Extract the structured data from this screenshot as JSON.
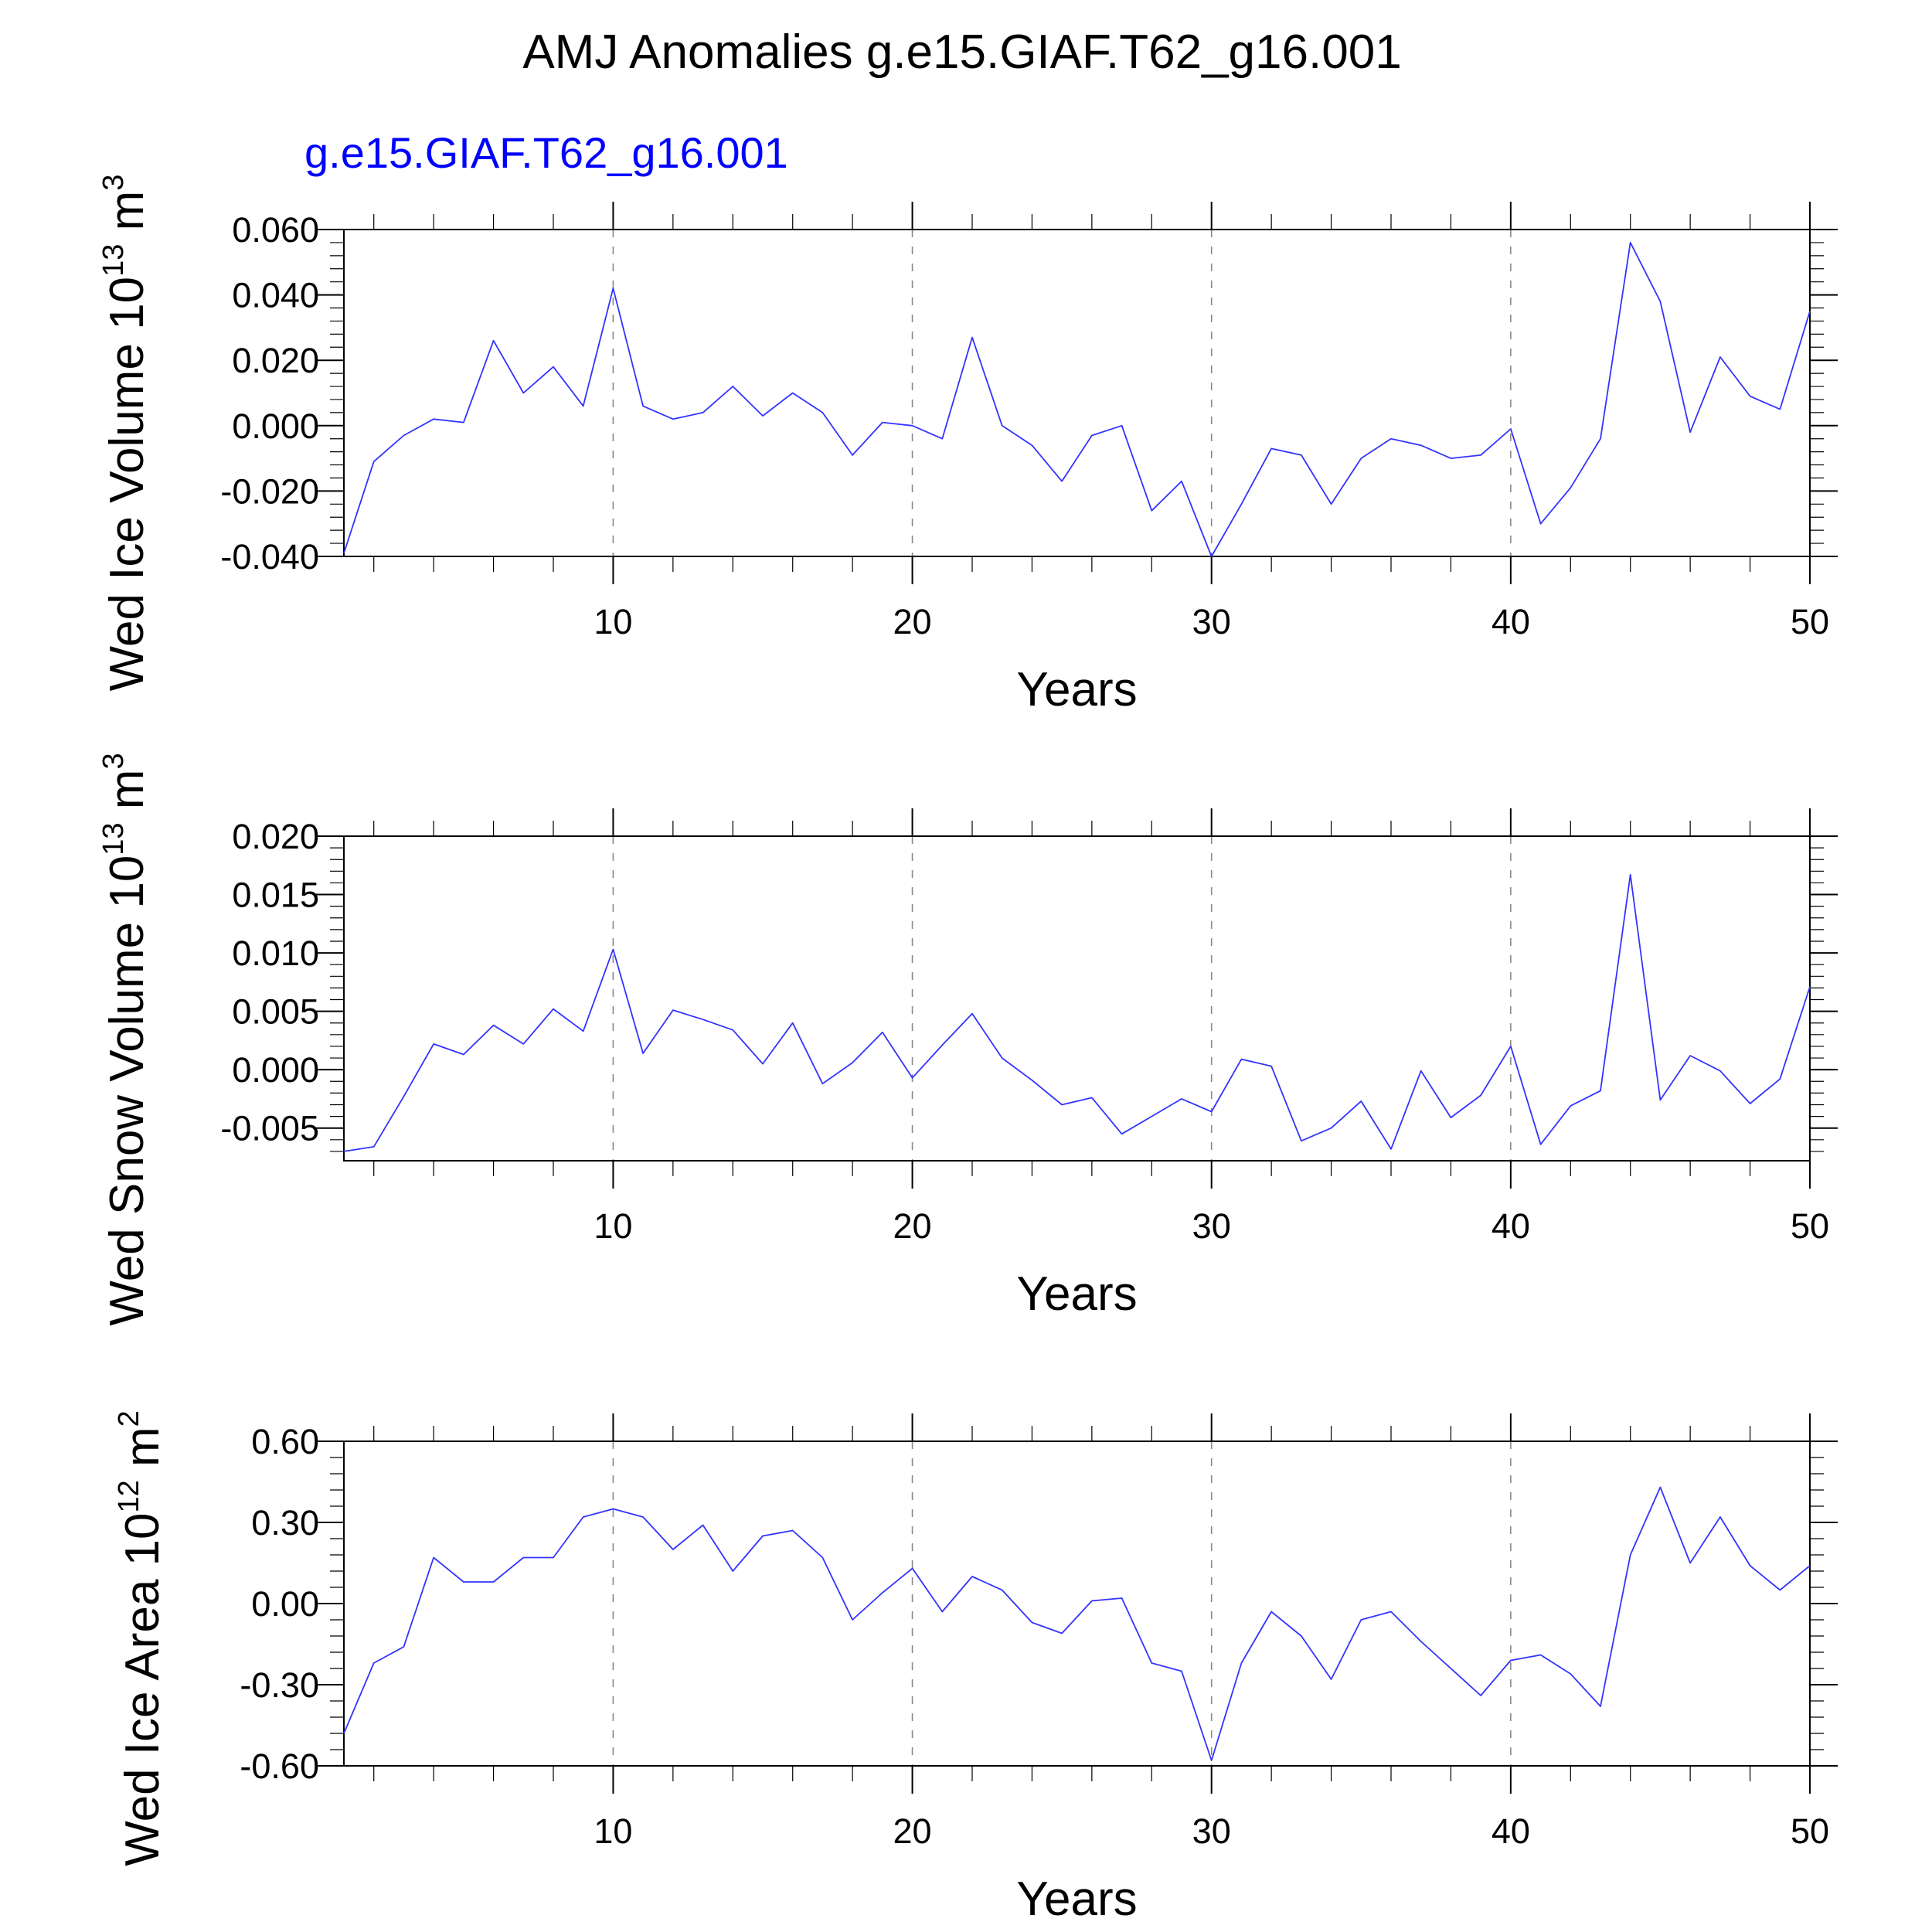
{
  "title": "AMJ Anomalies g.e15.GIAF.T62_g16.001",
  "subtitle": "g.e15.GIAF.T62_g16.001",
  "colors": {
    "series": "#3333ff",
    "subtitle": "#0000ff",
    "frame": "#000000",
    "grid": "#888888"
  },
  "chart_data": [
    {
      "type": "line",
      "ylabel": {
        "text": "Wed Ice Volume 10",
        "sup1": "13",
        "mid": " m",
        "sup2": "3"
      },
      "xlabel": "Years",
      "xlim": [
        1,
        50
      ],
      "ylim": [
        -0.04,
        0.06
      ],
      "x_ticks": [
        "10",
        "20",
        "30",
        "40",
        "50"
      ],
      "y_ticks": [
        "-0.040",
        "-0.020",
        "0.000",
        "0.020",
        "0.040",
        "0.060"
      ],
      "grid": "vertical dashed at major x ticks",
      "series": [
        {
          "x": [
            1,
            2,
            3,
            4,
            5,
            6,
            7,
            8,
            9,
            10,
            11,
            12,
            13,
            14,
            15,
            16,
            17,
            18,
            19,
            20,
            21,
            22,
            23,
            24,
            25,
            26,
            27,
            28,
            29,
            30,
            31,
            32,
            33,
            34,
            35,
            36,
            37,
            38,
            39,
            40,
            41,
            42,
            43,
            44,
            45,
            46,
            47,
            48,
            49,
            50
          ],
          "values": [
            -0.039,
            -0.011,
            -0.003,
            0.002,
            0.001,
            0.026,
            0.01,
            0.018,
            0.006,
            0.042,
            0.006,
            0.002,
            0.004,
            0.012,
            0.003,
            0.01,
            0.004,
            -0.009,
            0.001,
            0.0,
            -0.004,
            0.027,
            0.0,
            -0.006,
            -0.017,
            -0.003,
            0.0,
            -0.026,
            -0.017,
            -0.04,
            -0.024,
            -0.007,
            -0.009,
            -0.024,
            -0.01,
            -0.004,
            -0.006,
            -0.01,
            -0.009,
            -0.001,
            -0.03,
            -0.019,
            -0.004,
            0.056,
            0.038,
            -0.002,
            0.021,
            0.009,
            0.005,
            0.035
          ]
        }
      ]
    },
    {
      "type": "line",
      "ylabel": {
        "text": "Wed Snow Volume 10",
        "sup1": "13",
        "mid": " m",
        "sup2": "3"
      },
      "xlabel": "Years",
      "xlim": [
        1,
        50
      ],
      "ylim": [
        -0.0078,
        0.02
      ],
      "x_ticks": [
        "10",
        "20",
        "30",
        "40",
        "50"
      ],
      "y_ticks": [
        "-0.005",
        "0.000",
        "0.005",
        "0.010",
        "0.015",
        "0.020"
      ],
      "grid": "vertical dashed at major x ticks",
      "series": [
        {
          "x": [
            1,
            2,
            3,
            4,
            5,
            6,
            7,
            8,
            9,
            10,
            11,
            12,
            13,
            14,
            15,
            16,
            17,
            18,
            19,
            20,
            21,
            22,
            23,
            24,
            25,
            26,
            27,
            28,
            29,
            30,
            31,
            32,
            33,
            34,
            35,
            36,
            37,
            38,
            39,
            40,
            41,
            42,
            43,
            44,
            45,
            46,
            47,
            48,
            49,
            50
          ],
          "values": [
            -0.007,
            -0.0066,
            -0.0023,
            0.0022,
            0.0013,
            0.0038,
            0.0022,
            0.0052,
            0.0033,
            0.0103,
            0.0014,
            0.0051,
            0.0043,
            0.0034,
            0.0005,
            0.004,
            -0.0012,
            0.0006,
            0.0032,
            -0.0007,
            0.0021,
            0.0048,
            0.001,
            -0.0009,
            -0.003,
            -0.0024,
            -0.0055,
            -0.004,
            -0.0025,
            -0.0036,
            0.0009,
            0.0003,
            -0.0061,
            -0.005,
            -0.0027,
            -0.0068,
            -0.0001,
            -0.0041,
            -0.0022,
            0.002,
            -0.0064,
            -0.0031,
            -0.0018,
            0.0167,
            -0.0026,
            0.0012,
            -0.0001,
            -0.0029,
            -0.0008,
            0.0071
          ]
        }
      ]
    },
    {
      "type": "line",
      "ylabel": {
        "text": "Wed Ice Area 10",
        "sup1": "12",
        "mid": " m",
        "sup2": "2"
      },
      "xlabel": "Years",
      "xlim": [
        1,
        50
      ],
      "ylim": [
        -0.6,
        0.6
      ],
      "x_ticks": [
        "10",
        "20",
        "30",
        "40",
        "50"
      ],
      "y_ticks": [
        "-0.60",
        "-0.30",
        "0.00",
        "0.30",
        "0.60"
      ],
      "grid": "vertical dashed at major x ticks",
      "series": [
        {
          "x": [
            1,
            2,
            3,
            4,
            5,
            6,
            7,
            8,
            9,
            10,
            11,
            12,
            13,
            14,
            15,
            16,
            17,
            18,
            19,
            20,
            21,
            22,
            23,
            24,
            25,
            26,
            27,
            28,
            29,
            30,
            31,
            32,
            33,
            34,
            35,
            36,
            37,
            38,
            39,
            40,
            41,
            42,
            43,
            44,
            45,
            46,
            47,
            48,
            49,
            50
          ],
          "values": [
            -0.48,
            -0.22,
            -0.16,
            0.17,
            0.08,
            0.08,
            0.17,
            0.17,
            0.32,
            0.35,
            0.32,
            0.2,
            0.29,
            0.12,
            0.25,
            0.27,
            0.17,
            -0.06,
            0.04,
            0.13,
            -0.03,
            0.1,
            0.05,
            -0.07,
            -0.11,
            0.01,
            0.02,
            -0.22,
            -0.25,
            -0.58,
            -0.22,
            -0.03,
            -0.12,
            -0.28,
            -0.06,
            -0.03,
            -0.14,
            -0.24,
            -0.34,
            -0.21,
            -0.19,
            -0.26,
            -0.38,
            0.18,
            0.43,
            0.15,
            0.32,
            0.14,
            0.05,
            0.14
          ]
        }
      ]
    }
  ]
}
